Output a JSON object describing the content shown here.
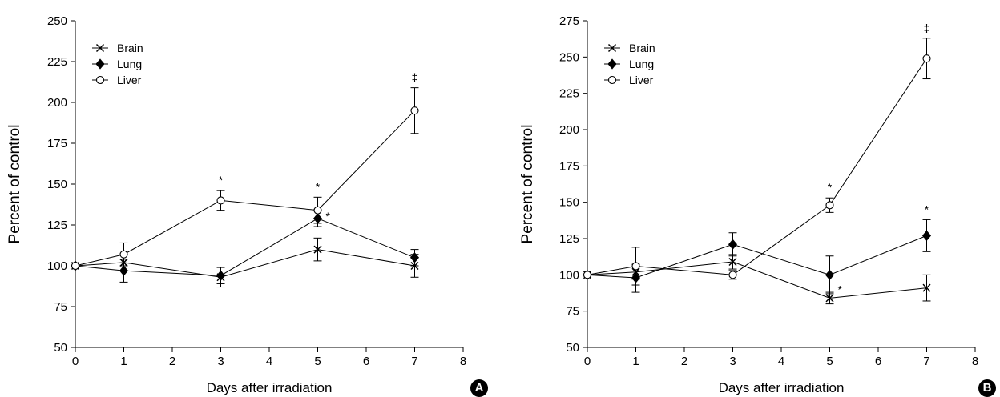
{
  "chart_data": [
    {
      "type": "line",
      "panel_label": "A",
      "xlabel": "Days after irradiation",
      "ylabel": "Percent of control",
      "xlim": [
        0,
        8
      ],
      "ylim": [
        50,
        250
      ],
      "xticks": [
        0,
        1,
        2,
        3,
        4,
        5,
        6,
        7,
        8
      ],
      "yticks": [
        50,
        75,
        100,
        125,
        150,
        175,
        200,
        225,
        250
      ],
      "grid": false,
      "legend_position": "top-left",
      "x": [
        0,
        1,
        3,
        5,
        7
      ],
      "series": [
        {
          "name": "Brain",
          "marker": "x",
          "values": [
            100,
            102,
            93,
            110,
            100
          ],
          "err": [
            0,
            5,
            6,
            7,
            7
          ],
          "sig": [
            "",
            "",
            "",
            "",
            ""
          ]
        },
        {
          "name": "Lung",
          "marker": "diamond",
          "values": [
            100,
            97,
            94,
            129,
            105
          ],
          "err": [
            0,
            7,
            5,
            5,
            5
          ],
          "sig": [
            "",
            "",
            "",
            "*",
            ""
          ]
        },
        {
          "name": "Liver",
          "marker": "circle",
          "values": [
            100,
            107,
            140,
            134,
            195
          ],
          "err": [
            0,
            7,
            6,
            8,
            14
          ],
          "sig": [
            "",
            "",
            "*",
            "*",
            "‡"
          ]
        }
      ]
    },
    {
      "type": "line",
      "panel_label": "B",
      "xlabel": "Days after irradiation",
      "ylabel": "Percent of control",
      "xlim": [
        0,
        8
      ],
      "ylim": [
        50,
        275
      ],
      "xticks": [
        0,
        1,
        2,
        3,
        4,
        5,
        6,
        7,
        8
      ],
      "yticks": [
        50,
        75,
        100,
        125,
        150,
        175,
        200,
        225,
        250,
        275
      ],
      "grid": false,
      "legend_position": "top-left",
      "x": [
        0,
        1,
        3,
        5,
        7
      ],
      "series": [
        {
          "name": "Brain",
          "marker": "x",
          "values": [
            100,
            102,
            109,
            84,
            91
          ],
          "err": [
            0,
            5,
            5,
            4,
            9
          ],
          "sig": [
            "",
            "",
            "",
            "*",
            ""
          ]
        },
        {
          "name": "Lung",
          "marker": "diamond",
          "values": [
            100,
            98,
            121,
            100,
            127
          ],
          "err": [
            0,
            10,
            8,
            13,
            11
          ],
          "sig": [
            "",
            "",
            "",
            "",
            "*"
          ]
        },
        {
          "name": "Liver",
          "marker": "circle",
          "values": [
            100,
            106,
            100,
            148,
            249
          ],
          "err": [
            0,
            13,
            3,
            5,
            14
          ],
          "sig": [
            "",
            "",
            "",
            "*",
            "‡"
          ]
        }
      ]
    }
  ]
}
